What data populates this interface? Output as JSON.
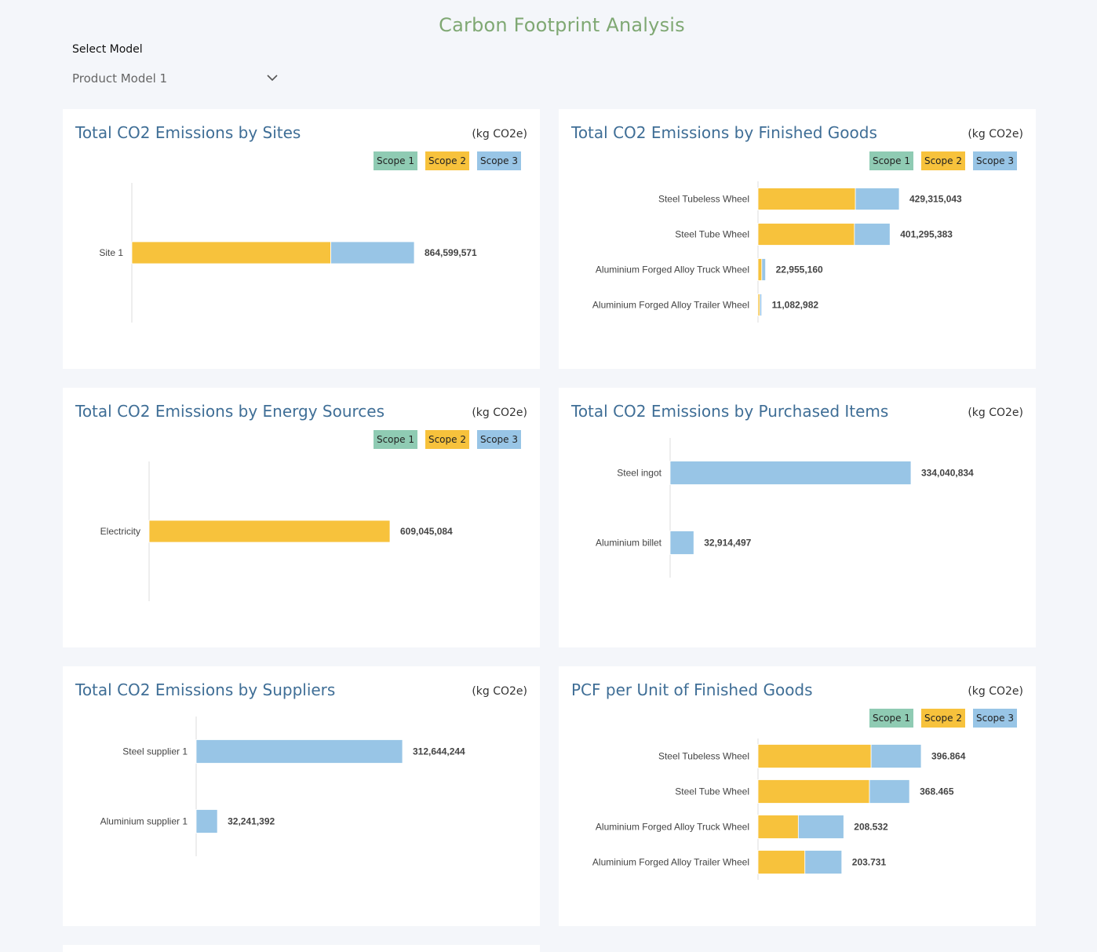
{
  "header": {
    "title": "Carbon Footprint Analysis"
  },
  "model_select": {
    "label": "Select Model",
    "value": "Product Model 1"
  },
  "legend": {
    "scope1": {
      "label": "Scope 1",
      "color": "#8fcbb3"
    },
    "scope2": {
      "label": "Scope 2",
      "color": "#f7c23c"
    },
    "scope3": {
      "label": "Scope 3",
      "color": "#98c5e6"
    }
  },
  "chart_data": [
    {
      "id": "sites",
      "type": "bar",
      "orientation": "horizontal",
      "stacked": true,
      "title": "Total CO2 Emissions by Sites",
      "unit": "(kg CO2e)",
      "show_legend": true,
      "categories": [
        "Site 1"
      ],
      "series": [
        {
          "name": "Scope 1",
          "values": [
            0
          ]
        },
        {
          "name": "Scope 2",
          "values": [
            609045084
          ]
        },
        {
          "name": "Scope 3",
          "values": [
            255554487
          ]
        }
      ],
      "totals": [
        "864,599,571"
      ]
    },
    {
      "id": "finished_goods",
      "type": "bar",
      "orientation": "horizontal",
      "stacked": true,
      "title": "Total CO2 Emissions by Finished Goods",
      "unit": "(kg CO2e)",
      "show_legend": true,
      "categories": [
        "Steel Tubeless Wheel",
        "Steel Tube Wheel",
        "Aluminium Forged Alloy Truck Wheel",
        "Aluminium Forged Alloy Trailer Wheel"
      ],
      "series": [
        {
          "name": "Scope 1",
          "values": [
            0,
            0,
            0,
            0
          ]
        },
        {
          "name": "Scope 2",
          "values": [
            296000000,
            293000000,
            11500000,
            5500000
          ]
        },
        {
          "name": "Scope 3",
          "values": [
            133315043,
            108295383,
            11455160,
            5582982
          ]
        }
      ],
      "totals": [
        "429,315,043",
        "401,295,383",
        "22,955,160",
        "11,082,982"
      ]
    },
    {
      "id": "energy_sources",
      "type": "bar",
      "orientation": "horizontal",
      "stacked": true,
      "title": "Total CO2 Emissions by Energy Sources",
      "unit": "(kg CO2e)",
      "show_legend": true,
      "categories": [
        "Electricity"
      ],
      "series": [
        {
          "name": "Scope 1",
          "values": [
            0
          ]
        },
        {
          "name": "Scope 2",
          "values": [
            609045084
          ]
        },
        {
          "name": "Scope 3",
          "values": [
            0
          ]
        }
      ],
      "totals": [
        "609,045,084"
      ]
    },
    {
      "id": "purchased_items",
      "type": "bar",
      "orientation": "horizontal",
      "stacked": true,
      "title": "Total CO2 Emissions by Purchased Items",
      "unit": "(kg CO2e)",
      "show_legend": false,
      "categories": [
        "Steel ingot",
        "Aluminium billet"
      ],
      "series": [
        {
          "name": "Scope 1",
          "values": [
            0,
            0
          ]
        },
        {
          "name": "Scope 2",
          "values": [
            0,
            0
          ]
        },
        {
          "name": "Scope 3",
          "values": [
            334040834,
            32914497
          ]
        }
      ],
      "totals": [
        "334,040,834",
        "32,914,497"
      ]
    },
    {
      "id": "suppliers",
      "type": "bar",
      "orientation": "horizontal",
      "stacked": true,
      "title": "Total CO2 Emissions by Suppliers",
      "unit": "(kg CO2e)",
      "show_legend": false,
      "categories": [
        "Steel supplier 1",
        "Aluminium supplier 1"
      ],
      "series": [
        {
          "name": "Scope 1",
          "values": [
            0,
            0
          ]
        },
        {
          "name": "Scope 2",
          "values": [
            0,
            0
          ]
        },
        {
          "name": "Scope 3",
          "values": [
            312644244,
            32241392
          ]
        }
      ],
      "totals": [
        "312,644,244",
        "32,241,392"
      ]
    },
    {
      "id": "pcf_per_unit",
      "type": "bar",
      "orientation": "horizontal",
      "stacked": true,
      "title": "PCF per Unit of Finished Goods",
      "unit": "(kg CO2e)",
      "show_legend": true,
      "categories": [
        "Steel Tubeless Wheel",
        "Steel Tube Wheel",
        "Aluminium Forged Alloy Truck Wheel",
        "Aluminium Forged Alloy Trailer Wheel"
      ],
      "series": [
        {
          "name": "Scope 1",
          "values": [
            0,
            0,
            0,
            0
          ]
        },
        {
          "name": "Scope 2",
          "values": [
            275.0,
            271.0,
            98.0,
            114.0
          ]
        },
        {
          "name": "Scope 3",
          "values": [
            121.864,
            97.465,
            110.532,
            89.731
          ]
        }
      ],
      "totals": [
        "396.864",
        "368.465",
        "208.532",
        "203.731"
      ]
    }
  ]
}
